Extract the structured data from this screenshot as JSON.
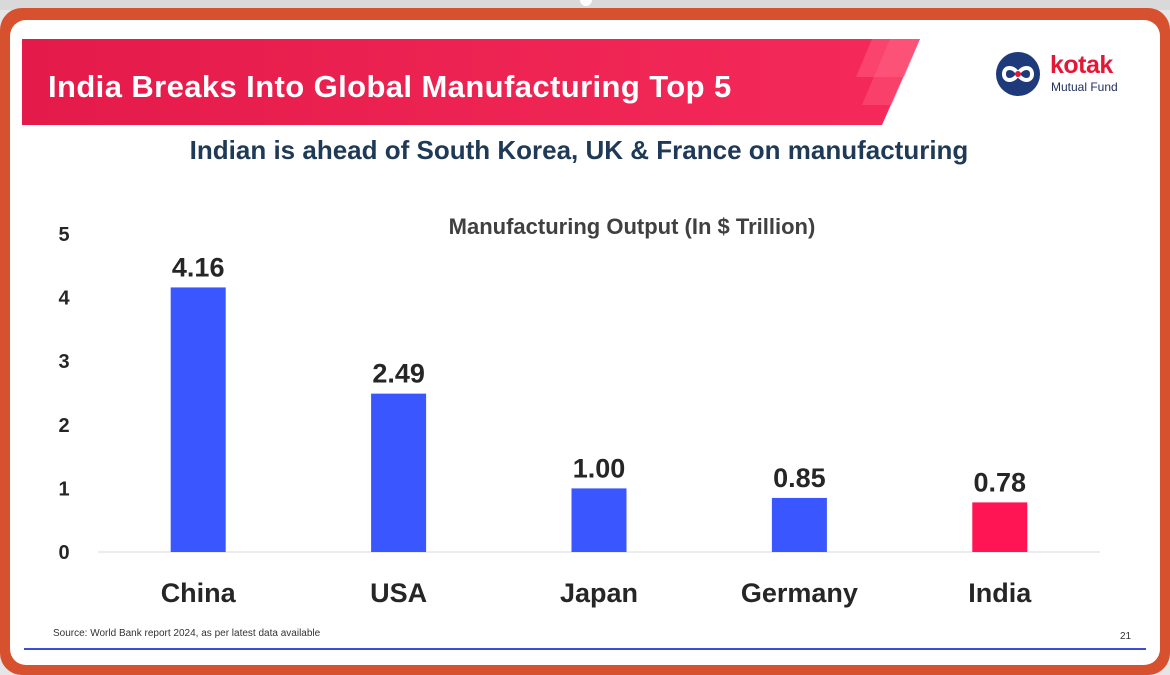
{
  "slide": {
    "title": "India Breaks Into Global Manufacturing Top 5",
    "subtitle": "Indian is ahead of South Korea, UK & France on manufacturing",
    "source": "Source: World Bank report 2024, as per latest data available",
    "page_number": "21"
  },
  "logo": {
    "name": "kotak",
    "sub": "Mutual Fund",
    "icon": "kotak-infinity-icon"
  },
  "colors": {
    "frame": "#d7512f",
    "banner": "#ed1f4d",
    "bar_default": "#3a56ff",
    "bar_highlight": "#ff1454",
    "footer_line": "#3a4fd6"
  },
  "chart_data": {
    "type": "bar",
    "title": "Manufacturing Output (In $ Trillion)",
    "categories": [
      "China",
      "USA",
      "Japan",
      "Germany",
      "India"
    ],
    "values": [
      4.16,
      2.49,
      1.0,
      0.85,
      0.78
    ],
    "value_labels": [
      "4.16",
      "2.49",
      "1.00",
      "0.85",
      "0.78"
    ],
    "highlight": "India",
    "ylim": [
      0,
      5
    ],
    "yticks": [
      0,
      1,
      2,
      3,
      4,
      5
    ],
    "xlabel": "",
    "ylabel": "",
    "grid": false,
    "legend": "none"
  }
}
